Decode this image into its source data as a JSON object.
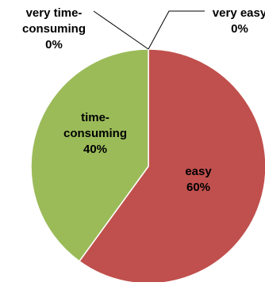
{
  "chart_data": {
    "type": "pie",
    "slices": [
      {
        "label_lines": [
          "easy",
          "60%"
        ],
        "value": 60,
        "color": "#c0504d"
      },
      {
        "label_lines": [
          "time-",
          "consuming",
          "40%"
        ],
        "value": 40,
        "color": "#9bbb59"
      },
      {
        "label_lines": [
          "very time-",
          "consuming",
          "0%"
        ],
        "value": 0,
        "color": "#8064a2"
      },
      {
        "label_lines": [
          "very easy",
          "0%"
        ],
        "value": 0,
        "color": "#4f81bd"
      }
    ],
    "legend": "none"
  }
}
